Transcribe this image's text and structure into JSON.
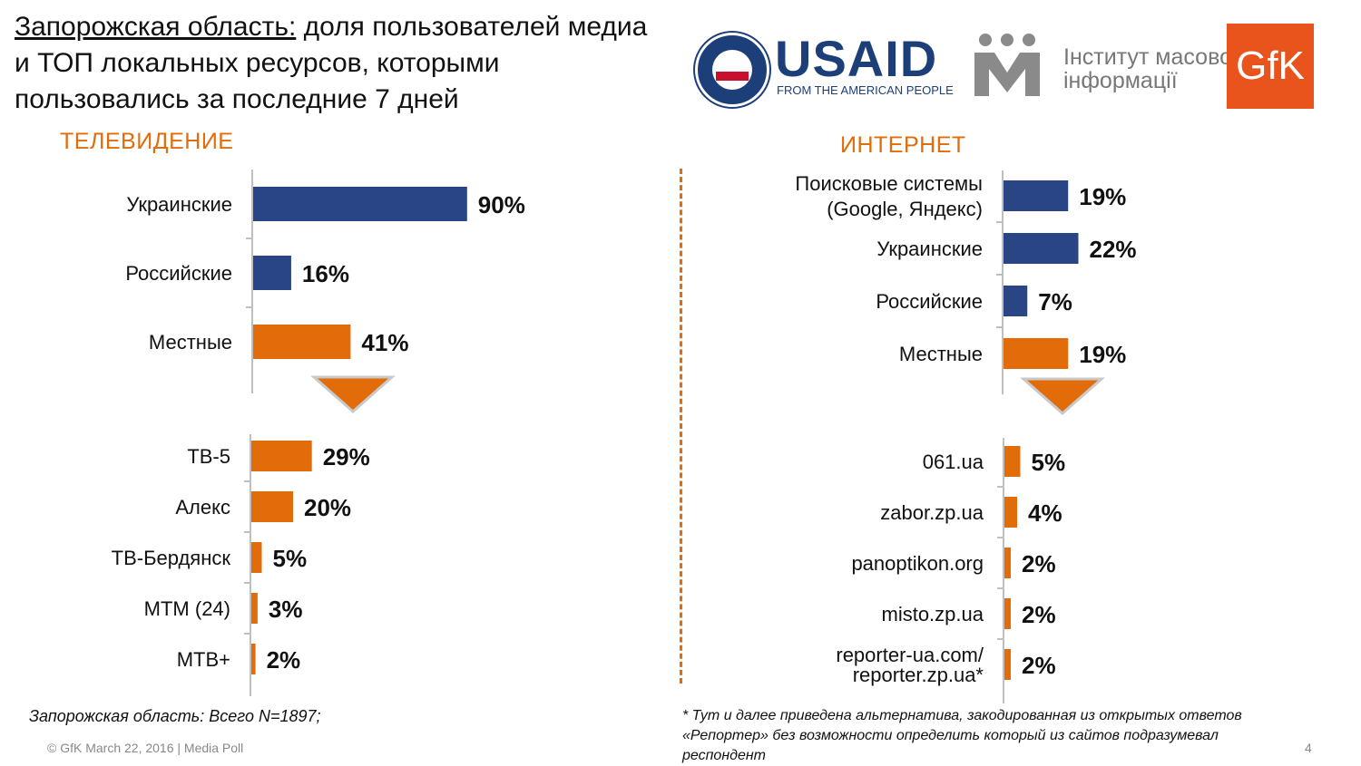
{
  "header": {
    "title_underlined": "Запорожская область:",
    "title_rest": " доля пользователей медиа и ТОП локальных ресурсов, которыми пользовались за последние 7 дней"
  },
  "logos": {
    "usaid_word": "USAID",
    "usaid_tagline": "FROM THE AMERICAN PEOPLE",
    "imi_line1": "Інститут масової",
    "imi_line2": "інформації",
    "gfk": "GfK"
  },
  "sections": {
    "tv": "ТЕЛЕВИДЕНИЕ",
    "internet": "ИНТЕРНЕТ"
  },
  "colors": {
    "blue": "#2a4586",
    "orange": "#e36c0a",
    "axis": "#bfbfbf"
  },
  "chart_data": [
    {
      "type": "bar",
      "orientation": "horizontal",
      "id": "tv-origin",
      "categories": [
        "Украинские",
        "Российские",
        "Местные"
      ],
      "values": [
        90,
        16,
        41
      ],
      "labels": [
        "90%",
        "16%",
        "41%"
      ],
      "colors": [
        "blue",
        "blue",
        "orange"
      ],
      "xlim": [
        0,
        100
      ],
      "grid": false
    },
    {
      "type": "bar",
      "orientation": "horizontal",
      "id": "tv-local",
      "categories": [
        "ТВ-5",
        "Алекс",
        "ТВ-Бердянск",
        "МТМ (24)",
        "МТВ+"
      ],
      "values": [
        29,
        20,
        5,
        3,
        2
      ],
      "labels": [
        "29%",
        "20%",
        "5%",
        "3%",
        "2%"
      ],
      "colors": [
        "orange",
        "orange",
        "orange",
        "orange",
        "orange"
      ],
      "xlim": [
        0,
        100
      ],
      "grid": false
    },
    {
      "type": "bar",
      "orientation": "horizontal",
      "id": "internet-origin",
      "categories": [
        "Поисковые системы (Google, Яндекс)",
        "Украинские",
        "Российские",
        "Местные"
      ],
      "category_lines": [
        [
          "Поисковые системы",
          "(Google, Яндекс)"
        ],
        [
          "Украинские"
        ],
        [
          "Российские"
        ],
        [
          "Местные"
        ]
      ],
      "values": [
        19,
        22,
        7,
        19
      ],
      "labels": [
        "19%",
        "22%",
        "7%",
        "19%"
      ],
      "colors": [
        "blue",
        "blue",
        "blue",
        "orange"
      ],
      "xlim": [
        0,
        100
      ],
      "grid": false
    },
    {
      "type": "bar",
      "orientation": "horizontal",
      "id": "internet-local",
      "categories": [
        "061.ua",
        "zabor.zp.ua",
        "panoptikon.org",
        "misto.zp.ua",
        "reporter-ua.com/ reporter.zp.ua*"
      ],
      "category_lines": [
        [
          "061.ua"
        ],
        [
          "zabor.zp.ua"
        ],
        [
          "panoptikon.org"
        ],
        [
          "misto.zp.ua"
        ],
        [
          "reporter-ua.com/",
          "reporter.zp.ua*"
        ]
      ],
      "values": [
        5,
        4,
        2,
        2,
        2
      ],
      "labels": [
        "5%",
        "4%",
        "2%",
        "2%",
        "2%"
      ],
      "colors": [
        "orange",
        "orange",
        "orange",
        "orange",
        "orange"
      ],
      "xlim": [
        0,
        100
      ],
      "grid": false
    }
  ],
  "notes": {
    "sample": "Запорожская область: Всего N=1897;",
    "footnote": "* Тут и далее приведена альтернатива, закодированная из открытых ответов «Репортер» без возможности определить который из сайтов подразумевал респондент"
  },
  "footer": {
    "copyright": "© GfK March 22, 2016 | Media Poll",
    "page": "4"
  }
}
